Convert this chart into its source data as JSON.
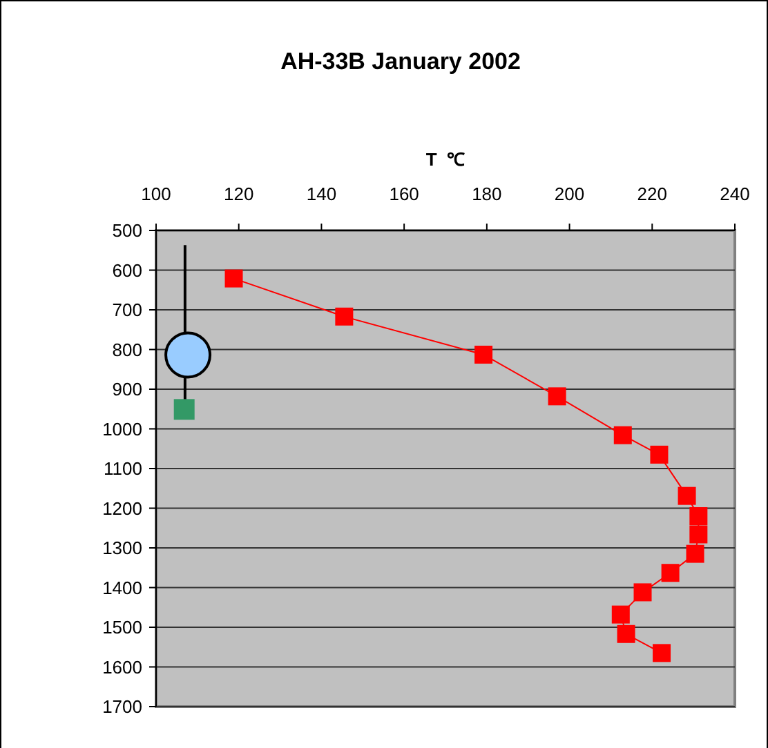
{
  "chart_data": {
    "type": "line",
    "title": "AH-33B January 2002",
    "xlabel": "T  ℃",
    "xlim": [
      100,
      240
    ],
    "xticks": [
      100,
      120,
      140,
      160,
      180,
      200,
      220,
      240
    ],
    "ylim": [
      1700,
      500
    ],
    "yticks": [
      500,
      600,
      700,
      800,
      900,
      1000,
      1100,
      1200,
      1300,
      1400,
      1500,
      1600,
      1700
    ],
    "grid": "y",
    "series": [
      {
        "color": "#ff0000",
        "marker": "square",
        "x": [
          118.8,
          145.5,
          179.2,
          197.0,
          212.9,
          221.7,
          228.4,
          231.2,
          231.2,
          230.4,
          224.4,
          217.7,
          212.4,
          213.7,
          222.3
        ],
        "values": [
          621,
          717,
          813,
          918,
          1016,
          1065,
          1169,
          1220,
          1266,
          1315,
          1363,
          1412,
          1468,
          1517,
          1565
        ]
      },
      {
        "color": "#000000",
        "marker": "none",
        "x": [
          107,
          107
        ],
        "values": [
          537,
          930
        ]
      },
      {
        "type": "scatter",
        "color": "#99ccff",
        "marker": "circle",
        "x": [
          107.7
        ],
        "values": [
          814
        ]
      },
      {
        "type": "scatter",
        "color": "#339966",
        "marker": "square",
        "x": [
          106.8
        ],
        "values": [
          951
        ]
      }
    ]
  }
}
